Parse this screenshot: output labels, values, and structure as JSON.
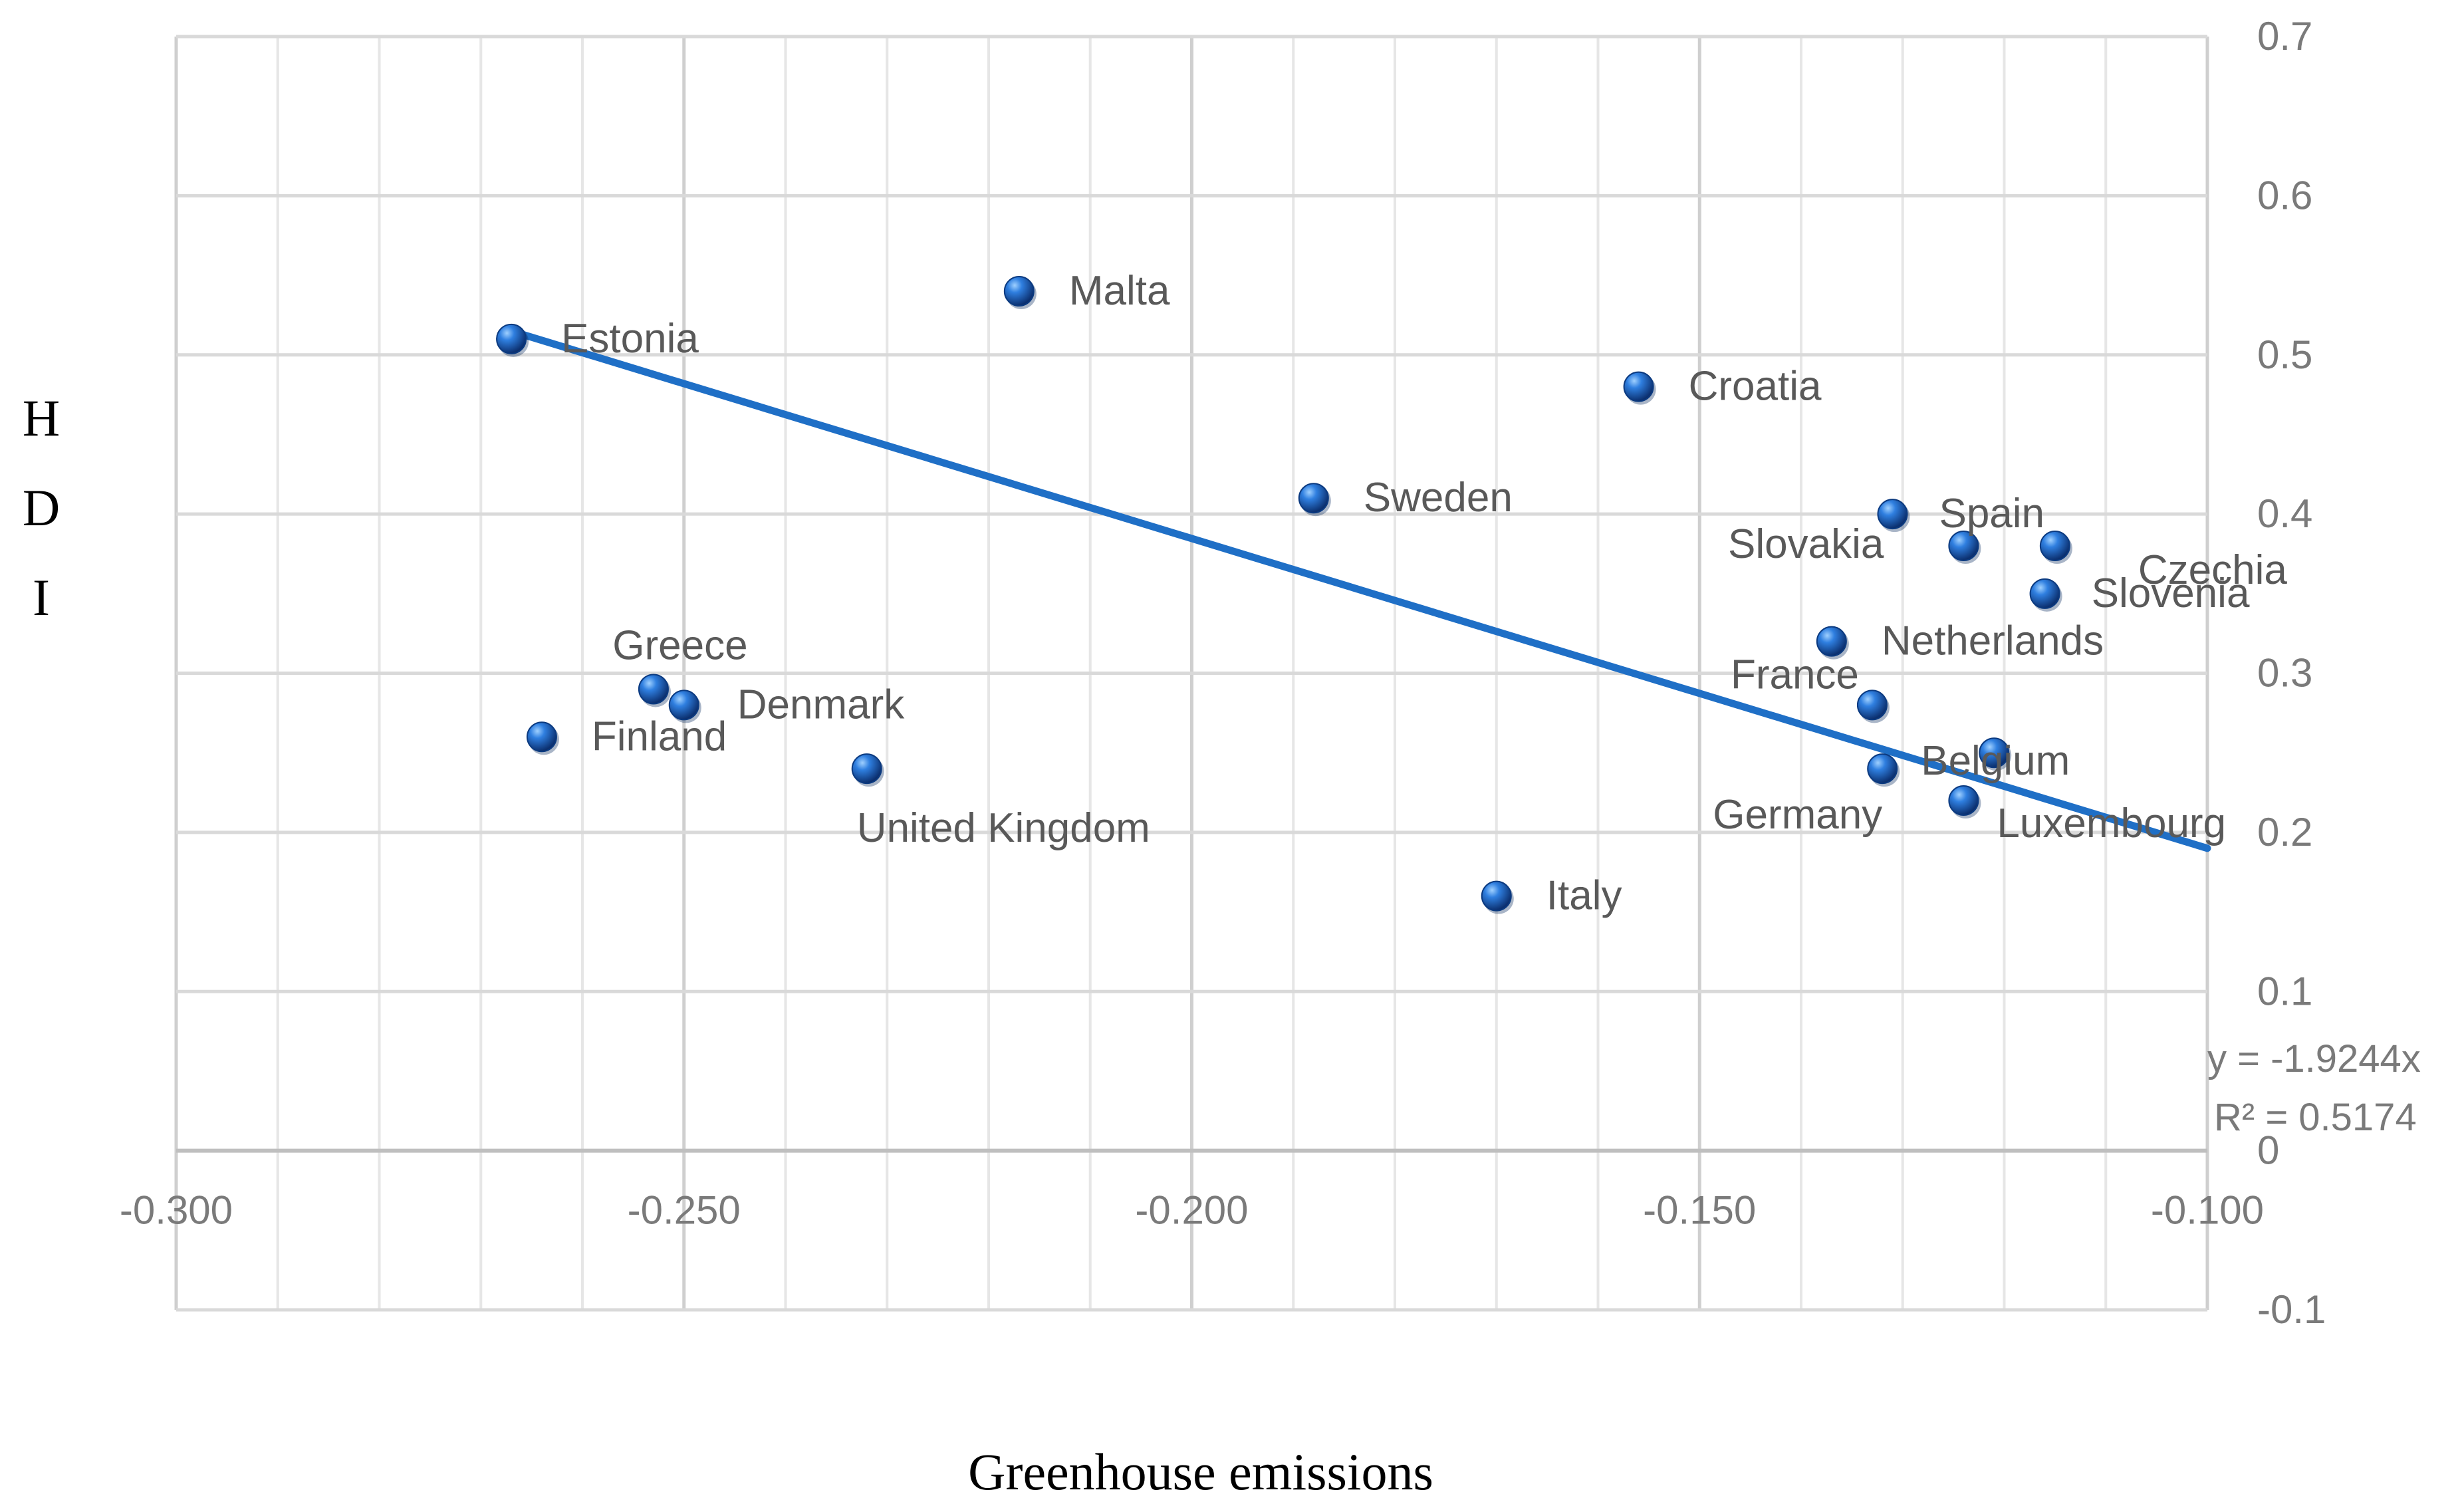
{
  "chart_data": {
    "type": "scatter",
    "title": "",
    "xlabel": "Greenhouse emissions",
    "ylabel": "HDI",
    "ylabel_letters": [
      "H",
      "D",
      "I"
    ],
    "xlim": [
      -0.3,
      -0.1
    ],
    "ylim": [
      -0.1,
      0.7
    ],
    "x_ticks": [
      -0.3,
      -0.25,
      -0.2,
      -0.15,
      -0.1
    ],
    "x_tick_labels": [
      "-0.300",
      "-0.250",
      "-0.200",
      "-0.150",
      "-0.100"
    ],
    "y_ticks": [
      0.7,
      0.6,
      0.5,
      0.4,
      0.3,
      0.2,
      0.1,
      0,
      -0.1
    ],
    "y_tick_labels": [
      "0.7",
      "0.6",
      "0.5",
      "0.4",
      "0.3",
      "0.2",
      "0.1",
      "0",
      "-0.1"
    ],
    "grid": true,
    "points": [
      {
        "name": "Estonia",
        "x": -0.267,
        "y": 0.51
      },
      {
        "name": "Malta",
        "x": -0.217,
        "y": 0.54
      },
      {
        "name": "Croatia",
        "x": -0.156,
        "y": 0.48
      },
      {
        "name": "Sweden",
        "x": -0.188,
        "y": 0.41
      },
      {
        "name": "Spain",
        "x": -0.131,
        "y": 0.4
      },
      {
        "name": "Slovakia",
        "x": -0.124,
        "y": 0.38
      },
      {
        "name": "Czechia",
        "x": -0.115,
        "y": 0.38
      },
      {
        "name": "Slovenia",
        "x": -0.116,
        "y": 0.35
      },
      {
        "name": "Netherlands",
        "x": -0.137,
        "y": 0.32
      },
      {
        "name": "France",
        "x": -0.133,
        "y": 0.28
      },
      {
        "name": "Belgium",
        "x": -0.121,
        "y": 0.25
      },
      {
        "name": "Germany",
        "x": -0.132,
        "y": 0.24
      },
      {
        "name": "Luxembourg",
        "x": -0.124,
        "y": 0.22
      },
      {
        "name": "Italy",
        "x": -0.17,
        "y": 0.16
      },
      {
        "name": "Greece",
        "x": -0.253,
        "y": 0.29
      },
      {
        "name": "Denmark",
        "x": -0.25,
        "y": 0.28
      },
      {
        "name": "Finland",
        "x": -0.264,
        "y": 0.26
      },
      {
        "name": "United Kingdom",
        "x": -0.232,
        "y": 0.24
      }
    ],
    "trendline": {
      "type": "linear",
      "x_start": -0.267,
      "y_start": 0.515,
      "x_end": -0.1,
      "y_end": 0.19
    },
    "equation_line1": "y = -1.9244x",
    "equation_line2": "R² = 0.5174",
    "colors": {
      "point": "#1f5fb4",
      "trendline": "#1f6fc6",
      "grid": "#d9d9d9"
    }
  }
}
